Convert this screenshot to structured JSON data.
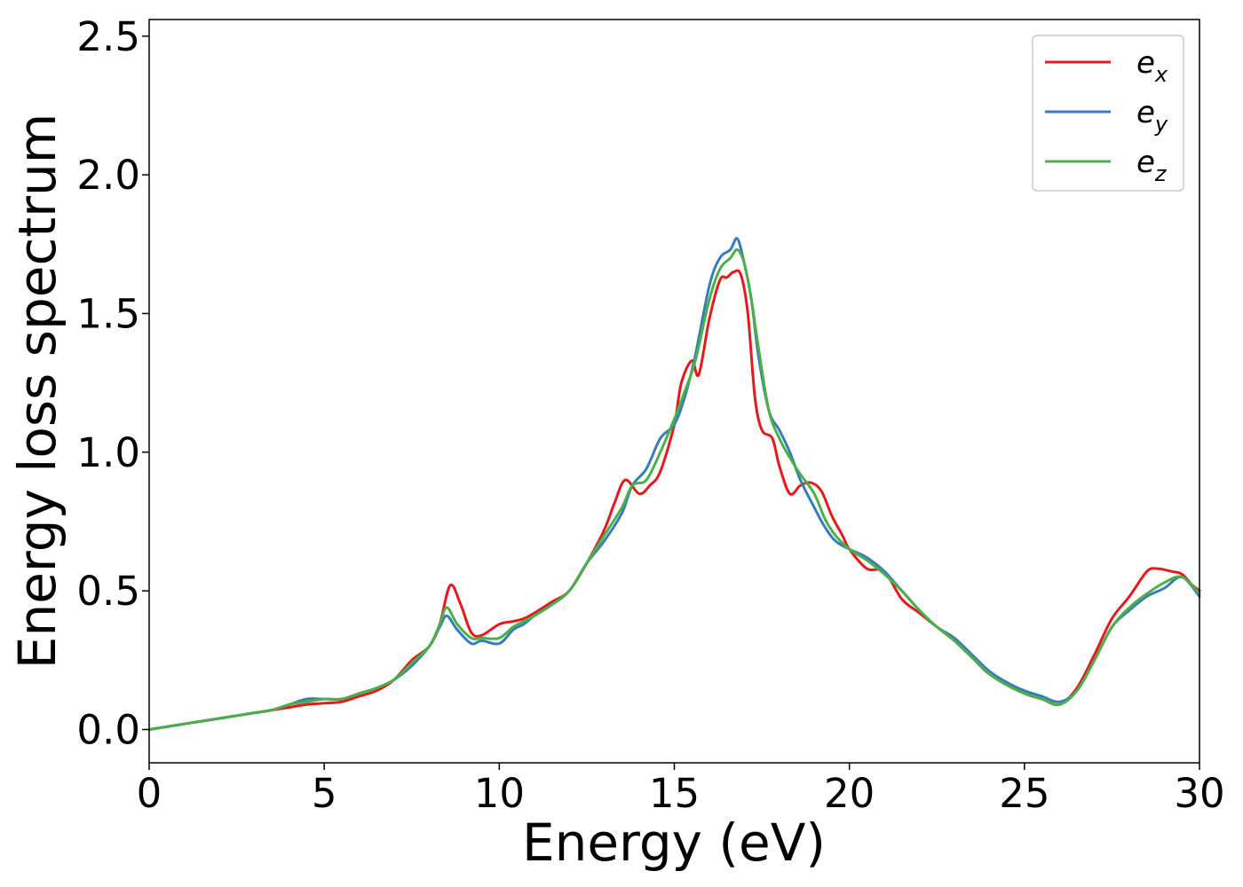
{
  "chart_data": {
    "type": "line",
    "title": "",
    "xlabel": "Energy (eV)",
    "ylabel": "Energy loss spectrum",
    "xlim": [
      0,
      30
    ],
    "ylim": [
      -0.12,
      2.56
    ],
    "xticks": [
      0,
      5,
      10,
      15,
      20,
      25,
      30
    ],
    "xtick_labels": [
      "0",
      "5",
      "10",
      "15",
      "20",
      "25",
      "30"
    ],
    "yticks": [
      0.0,
      0.5,
      1.0,
      1.5,
      2.0,
      2.5
    ],
    "ytick_labels": [
      "0.0",
      "0.5",
      "1.0",
      "1.5",
      "2.0",
      "2.5"
    ],
    "grid": false,
    "legend_position": "top-right",
    "series": [
      {
        "name": "e_x",
        "legend_base": "e",
        "legend_sub": "x",
        "color": "#e41a1c",
        "x": [
          0,
          1,
          2,
          2.5,
          3,
          3.5,
          4,
          4.5,
          5,
          5.5,
          6,
          6.5,
          7,
          7.5,
          8,
          8.3,
          8.6,
          8.9,
          9.2,
          9.5,
          10,
          10.4,
          10.7,
          11,
          11.5,
          12,
          12.5,
          13,
          13.3,
          13.6,
          14,
          14.3,
          14.6,
          15,
          15.2,
          15.5,
          15.7,
          16,
          16.3,
          16.5,
          16.7,
          16.9,
          17.1,
          17.3,
          17.5,
          17.8,
          18,
          18.3,
          18.6,
          18.9,
          19.2,
          19.5,
          19.8,
          20,
          20.5,
          21,
          21.5,
          22,
          22.5,
          23,
          23.5,
          24,
          24.5,
          25,
          25.5,
          26,
          26.5,
          27,
          27.5,
          28,
          28.5,
          28.8,
          29.2,
          29.5,
          29.8,
          30
        ],
        "y": [
          0.0,
          0.02,
          0.04,
          0.05,
          0.06,
          0.07,
          0.08,
          0.09,
          0.095,
          0.1,
          0.12,
          0.14,
          0.18,
          0.25,
          0.3,
          0.38,
          0.52,
          0.45,
          0.35,
          0.34,
          0.38,
          0.39,
          0.4,
          0.42,
          0.46,
          0.5,
          0.6,
          0.72,
          0.82,
          0.9,
          0.85,
          0.88,
          0.93,
          1.1,
          1.25,
          1.33,
          1.28,
          1.48,
          1.62,
          1.63,
          1.65,
          1.64,
          1.5,
          1.2,
          1.08,
          1.05,
          0.95,
          0.85,
          0.88,
          0.89,
          0.86,
          0.77,
          0.7,
          0.65,
          0.58,
          0.57,
          0.47,
          0.42,
          0.37,
          0.32,
          0.26,
          0.2,
          0.17,
          0.13,
          0.11,
          0.09,
          0.15,
          0.27,
          0.4,
          0.48,
          0.57,
          0.58,
          0.57,
          0.56,
          0.52,
          0.5
        ]
      },
      {
        "name": "e_y",
        "legend_base": "e",
        "legend_sub": "y",
        "color": "#377eb8",
        "x": [
          0,
          1,
          2,
          2.5,
          3,
          3.5,
          4,
          4.5,
          5,
          5.5,
          6,
          6.5,
          7,
          7.5,
          8,
          8.3,
          8.5,
          8.8,
          9.2,
          9.5,
          10,
          10.4,
          10.7,
          11,
          11.5,
          12,
          12.5,
          13,
          13.5,
          13.8,
          14.2,
          14.6,
          15,
          15.3,
          15.6,
          16,
          16.3,
          16.6,
          16.8,
          17,
          17.2,
          17.4,
          17.7,
          18,
          18.3,
          18.6,
          19,
          19.3,
          19.6,
          20,
          20.5,
          21,
          21.5,
          22,
          22.5,
          23,
          23.5,
          24,
          24.5,
          25,
          25.5,
          26,
          26.5,
          27,
          27.5,
          28,
          28.5,
          29,
          29.5,
          30
        ],
        "y": [
          0.0,
          0.02,
          0.04,
          0.05,
          0.06,
          0.07,
          0.09,
          0.11,
          0.11,
          0.11,
          0.13,
          0.15,
          0.18,
          0.23,
          0.3,
          0.37,
          0.41,
          0.36,
          0.31,
          0.32,
          0.31,
          0.36,
          0.38,
          0.41,
          0.45,
          0.5,
          0.6,
          0.68,
          0.78,
          0.88,
          0.94,
          1.05,
          1.1,
          1.2,
          1.35,
          1.6,
          1.7,
          1.73,
          1.77,
          1.68,
          1.55,
          1.35,
          1.15,
          1.08,
          1.0,
          0.9,
          0.8,
          0.73,
          0.68,
          0.65,
          0.62,
          0.57,
          0.5,
          0.43,
          0.37,
          0.33,
          0.27,
          0.21,
          0.17,
          0.14,
          0.12,
          0.1,
          0.14,
          0.25,
          0.37,
          0.43,
          0.48,
          0.51,
          0.55,
          0.48
        ]
      },
      {
        "name": "e_z",
        "legend_base": "e",
        "legend_sub": "z",
        "color": "#4daf4a",
        "x": [
          0,
          1,
          2,
          2.5,
          3,
          3.5,
          4,
          4.5,
          5,
          5.5,
          6,
          6.5,
          7,
          7.5,
          8,
          8.3,
          8.5,
          8.8,
          9.2,
          9.5,
          10,
          10.4,
          10.7,
          11,
          11.5,
          12,
          12.5,
          13,
          13.5,
          13.8,
          14.2,
          14.6,
          15,
          15.3,
          15.6,
          16,
          16.3,
          16.6,
          16.8,
          17,
          17.2,
          17.4,
          17.7,
          18,
          18.3,
          18.6,
          19,
          19.3,
          19.6,
          20,
          20.5,
          21,
          21.5,
          22,
          22.5,
          23,
          23.5,
          24,
          24.5,
          25,
          25.5,
          26,
          26.5,
          27,
          27.5,
          28,
          28.5,
          29,
          29.5,
          30
        ],
        "y": [
          0.0,
          0.02,
          0.04,
          0.05,
          0.06,
          0.07,
          0.09,
          0.1,
          0.11,
          0.11,
          0.13,
          0.15,
          0.18,
          0.24,
          0.3,
          0.38,
          0.44,
          0.38,
          0.33,
          0.33,
          0.33,
          0.37,
          0.39,
          0.41,
          0.45,
          0.5,
          0.6,
          0.7,
          0.8,
          0.88,
          0.9,
          1.0,
          1.12,
          1.22,
          1.33,
          1.55,
          1.66,
          1.7,
          1.73,
          1.68,
          1.55,
          1.38,
          1.15,
          1.05,
          0.98,
          0.92,
          0.85,
          0.76,
          0.7,
          0.65,
          0.61,
          0.56,
          0.5,
          0.43,
          0.37,
          0.32,
          0.26,
          0.2,
          0.16,
          0.13,
          0.11,
          0.09,
          0.14,
          0.25,
          0.37,
          0.44,
          0.49,
          0.53,
          0.55,
          0.49
        ]
      }
    ]
  }
}
